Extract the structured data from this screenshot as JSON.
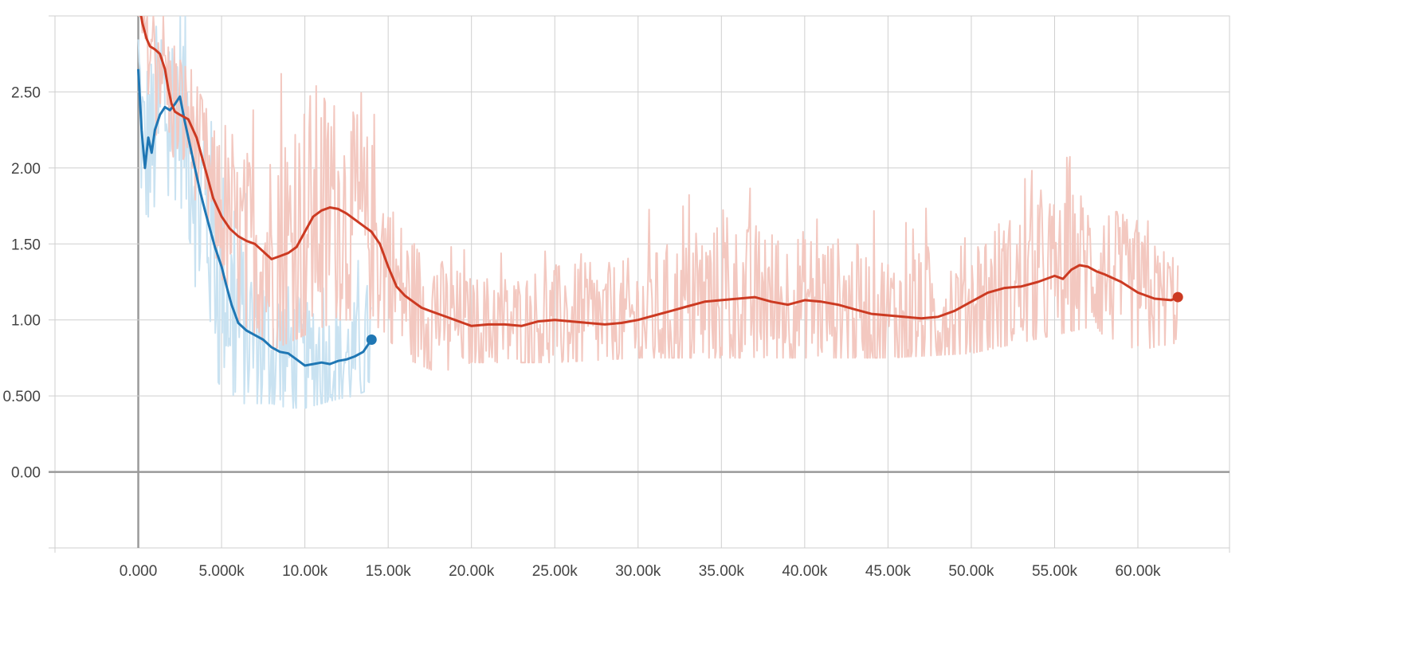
{
  "chart_data": {
    "type": "line",
    "title": "",
    "xlabel": "",
    "ylabel": "",
    "xlim": [
      -5000,
      65500
    ],
    "ylim": [
      -0.5,
      3.0
    ],
    "grid": true,
    "legend": "none",
    "x_ticks": [
      {
        "value": 0,
        "label": "0.000"
      },
      {
        "value": 5000,
        "label": "5.000k"
      },
      {
        "value": 10000,
        "label": "10.00k"
      },
      {
        "value": 15000,
        "label": "15.00k"
      },
      {
        "value": 20000,
        "label": "20.00k"
      },
      {
        "value": 25000,
        "label": "25.00k"
      },
      {
        "value": 30000,
        "label": "30.00k"
      },
      {
        "value": 35000,
        "label": "35.00k"
      },
      {
        "value": 40000,
        "label": "40.00k"
      },
      {
        "value": 45000,
        "label": "45.00k"
      },
      {
        "value": 50000,
        "label": "50.00k"
      },
      {
        "value": 55000,
        "label": "55.00k"
      },
      {
        "value": 60000,
        "label": "60.00k"
      }
    ],
    "y_ticks": [
      {
        "value": 0.0,
        "label": "0.00"
      },
      {
        "value": 0.5,
        "label": "0.500"
      },
      {
        "value": 1.0,
        "label": "1.00"
      },
      {
        "value": 1.5,
        "label": "1.50"
      },
      {
        "value": 2.0,
        "label": "2.00"
      },
      {
        "value": 2.5,
        "label": "2.50"
      }
    ],
    "series": [
      {
        "color": "#1f77b4",
        "raw_color": "#c9e2f1",
        "smoothed": {
          "x": [
            0,
            200,
            400,
            600,
            800,
            1000,
            1300,
            1600,
            1900,
            2200,
            2500,
            2800,
            3100,
            3400,
            3700,
            4000,
            4300,
            4600,
            5000,
            5300,
            5600,
            6000,
            6500,
            7000,
            7500,
            8000,
            8500,
            9000,
            9500,
            10000,
            10500,
            11000,
            11500,
            12000,
            12500,
            13000,
            13500,
            14000
          ],
          "y": [
            2.65,
            2.25,
            2.0,
            2.2,
            2.1,
            2.25,
            2.35,
            2.4,
            2.38,
            2.42,
            2.47,
            2.3,
            2.15,
            2.0,
            1.85,
            1.72,
            1.6,
            1.48,
            1.35,
            1.22,
            1.1,
            0.98,
            0.93,
            0.9,
            0.87,
            0.82,
            0.79,
            0.78,
            0.74,
            0.7,
            0.71,
            0.72,
            0.71,
            0.73,
            0.74,
            0.76,
            0.79,
            0.87
          ]
        },
        "raw_range": {
          "x": [
            0,
            1000,
            2000,
            3000,
            4000,
            5000,
            6000,
            7000,
            8000,
            9000,
            10000,
            11000,
            12000,
            13000,
            14000
          ],
          "low": [
            1.6,
            1.45,
            1.6,
            1.3,
            0.75,
            0.55,
            0.45,
            0.45,
            0.45,
            0.42,
            0.42,
            0.45,
            0.48,
            0.5,
            0.55
          ],
          "high": [
            3.0,
            3.0,
            3.0,
            3.0,
            2.55,
            2.2,
            1.95,
            1.7,
            1.6,
            1.45,
            1.35,
            1.35,
            1.3,
            1.35,
            1.55
          ]
        }
      },
      {
        "color": "#cc3a22",
        "raw_color": "#f3c8c0",
        "smoothed": {
          "x": [
            0,
            250,
            500,
            700,
            1000,
            1300,
            1600,
            1800,
            2000,
            2200,
            2500,
            3000,
            3500,
            4000,
            4500,
            5000,
            5500,
            6000,
            6500,
            7000,
            7500,
            8000,
            8500,
            9000,
            9500,
            10000,
            10500,
            11000,
            11500,
            12000,
            12500,
            13000,
            13500,
            14000,
            14500,
            15000,
            15500,
            16000,
            16500,
            17000,
            17500,
            18000,
            18500,
            19000,
            19500,
            20000,
            21000,
            22000,
            23000,
            24000,
            25000,
            26000,
            27000,
            28000,
            29000,
            30000,
            31000,
            32000,
            33000,
            34000,
            35000,
            36000,
            37000,
            38000,
            39000,
            40000,
            41000,
            42000,
            43000,
            44000,
            45000,
            46000,
            47000,
            48000,
            49000,
            50000,
            51000,
            52000,
            53000,
            54000,
            55000,
            55500,
            56000,
            56500,
            57000,
            57500,
            58000,
            59000,
            60000,
            61000,
            62000,
            62400
          ],
          "y": [
            3.1,
            2.95,
            2.85,
            2.8,
            2.78,
            2.75,
            2.65,
            2.52,
            2.42,
            2.37,
            2.35,
            2.32,
            2.2,
            2.0,
            1.8,
            1.68,
            1.6,
            1.55,
            1.52,
            1.5,
            1.45,
            1.4,
            1.42,
            1.44,
            1.48,
            1.58,
            1.68,
            1.72,
            1.74,
            1.73,
            1.7,
            1.66,
            1.62,
            1.58,
            1.5,
            1.35,
            1.22,
            1.16,
            1.12,
            1.08,
            1.06,
            1.04,
            1.02,
            1.0,
            0.98,
            0.96,
            0.97,
            0.97,
            0.96,
            0.99,
            1.0,
            0.99,
            0.98,
            0.97,
            0.98,
            1.0,
            1.03,
            1.06,
            1.09,
            1.12,
            1.13,
            1.14,
            1.15,
            1.12,
            1.1,
            1.13,
            1.12,
            1.1,
            1.07,
            1.04,
            1.03,
            1.02,
            1.01,
            1.02,
            1.06,
            1.12,
            1.18,
            1.21,
            1.22,
            1.25,
            1.29,
            1.27,
            1.33,
            1.36,
            1.35,
            1.32,
            1.3,
            1.25,
            1.18,
            1.14,
            1.13,
            1.15
          ]
        },
        "raw_range": {
          "x": [
            0,
            2000,
            4000,
            6000,
            8000,
            10000,
            12000,
            14000,
            16000,
            18000,
            20000,
            25000,
            30000,
            35000,
            40000,
            45000,
            50000,
            55000,
            57000,
            60000,
            62400
          ],
          "low": [
            2.3,
            2.1,
            1.4,
            1.0,
            0.8,
            0.9,
            1.0,
            1.0,
            0.75,
            0.65,
            0.72,
            0.72,
            0.75,
            0.75,
            0.75,
            0.75,
            0.78,
            0.9,
            0.95,
            0.8,
            0.85
          ],
          "high": [
            3.0,
            3.0,
            2.4,
            2.2,
            2.6,
            3.0,
            2.7,
            2.4,
            1.8,
            1.5,
            1.45,
            1.55,
            1.7,
            1.9,
            1.8,
            1.7,
            1.8,
            2.05,
            2.1,
            1.75,
            1.6
          ]
        }
      }
    ]
  }
}
